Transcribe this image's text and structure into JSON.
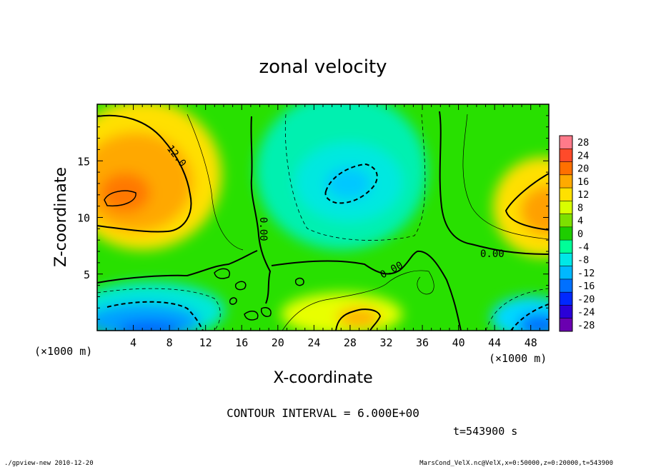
{
  "chart_data": {
    "type": "heatmap",
    "title": "zonal velocity",
    "xlabel": "X-coordinate",
    "ylabel": "Z-coordinate",
    "x_unit": "(×1000 m)",
    "x_ticks": [
      4,
      8,
      12,
      16,
      20,
      24,
      28,
      32,
      36,
      40,
      44,
      48
    ],
    "y_ticks": [
      5,
      10,
      15
    ],
    "xlim": [
      0,
      50
    ],
    "ylim": [
      0,
      20
    ],
    "colorbar_levels": [
      28,
      24,
      20,
      16,
      12,
      8,
      4,
      0,
      -4,
      -8,
      -12,
      -16,
      -20,
      -24,
      -28
    ],
    "colorbar_colors": [
      "#ff7a8a",
      "#ff4a2a",
      "#ff7000",
      "#ffaa00",
      "#ffe000",
      "#d8ff00",
      "#7de000",
      "#1ecd00",
      "#00ff98",
      "#00e7e7",
      "#00b8ff",
      "#0070ff",
      "#0028ff",
      "#2a00d8",
      "#6a00b0"
    ],
    "contour_interval_text": "CONTOUR INTERVAL = 6.000E+00",
    "contour_labels": [
      "12.0",
      "0.00",
      "0.00",
      "0.00"
    ],
    "time_text": "t=543900 s",
    "footer_left": "./gpview-new  2010-12-20",
    "footer_right": "MarsCond_VelX.nc@VelX,x=0:50000,z=0:20000,t=543900"
  }
}
